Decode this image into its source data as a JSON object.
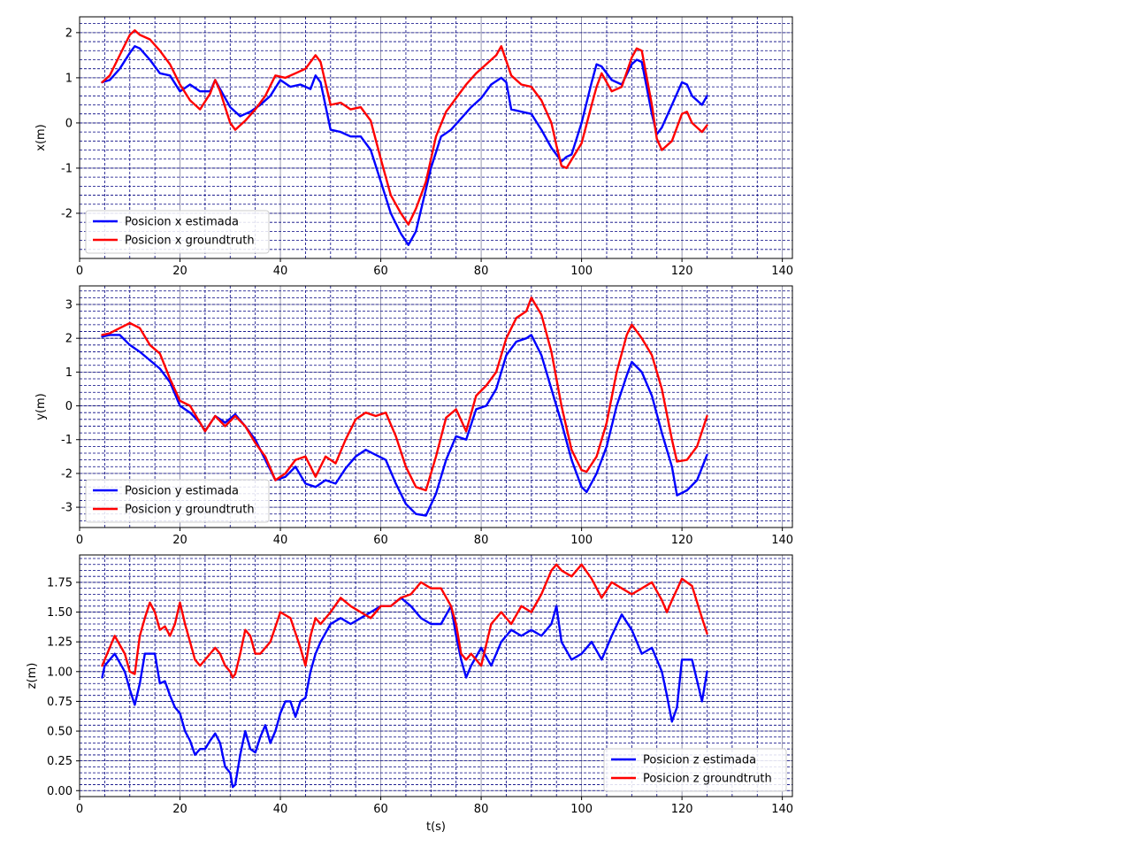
{
  "chart_data": [
    {
      "type": "line",
      "xlabel": "",
      "ylabel": "x(m)",
      "xlim": [
        0,
        142
      ],
      "ylim": [
        -3.0,
        2.35
      ],
      "xticks": [
        0,
        20,
        40,
        60,
        80,
        100,
        120,
        140
      ],
      "yticks": [
        -2,
        -1,
        0,
        1,
        2
      ],
      "grid": true,
      "legend_position": "lower-left",
      "series": [
        {
          "name": "Posicion x estimada",
          "color": "#0000ff",
          "x": [
            4.5,
            6,
            8,
            10,
            11,
            12,
            14,
            16,
            18,
            20,
            22,
            24,
            26,
            27,
            28,
            30,
            32,
            34,
            36,
            38,
            40,
            42,
            44,
            46,
            47,
            48,
            50,
            52,
            54,
            56,
            58,
            60,
            62,
            64,
            65.5,
            67,
            70,
            72,
            74,
            76,
            78,
            80,
            82,
            84,
            85,
            86,
            88,
            90,
            92,
            94,
            96,
            97,
            98,
            100,
            102,
            103,
            104,
            106,
            108,
            110,
            111,
            112,
            114,
            115,
            116,
            118,
            120,
            121,
            122,
            124,
            125
          ],
          "y": [
            0.9,
            0.95,
            1.2,
            1.55,
            1.7,
            1.65,
            1.4,
            1.1,
            1.05,
            0.7,
            0.85,
            0.7,
            0.7,
            0.95,
            0.75,
            0.35,
            0.15,
            0.25,
            0.4,
            0.6,
            0.95,
            0.8,
            0.85,
            0.75,
            1.05,
            0.9,
            -0.15,
            -0.2,
            -0.3,
            -0.3,
            -0.6,
            -1.3,
            -2.0,
            -2.45,
            -2.7,
            -2.4,
            -1.0,
            -0.3,
            -0.15,
            0.1,
            0.35,
            0.55,
            0.85,
            1.0,
            0.9,
            0.3,
            0.25,
            0.2,
            -0.15,
            -0.55,
            -0.85,
            -0.75,
            -0.7,
            0.0,
            0.9,
            1.3,
            1.25,
            0.95,
            0.85,
            1.3,
            1.4,
            1.35,
            0.2,
            -0.25,
            -0.1,
            0.4,
            0.9,
            0.85,
            0.6,
            0.4,
            0.6
          ]
        },
        {
          "name": "Posicion x groundtruth",
          "color": "#ff0000",
          "x": [
            4.5,
            6,
            8,
            10,
            11,
            12,
            14,
            16,
            18,
            20,
            22,
            24,
            26,
            27,
            28,
            30,
            31,
            33,
            35,
            37,
            39,
            41,
            43,
            45,
            47,
            48,
            50,
            52,
            54,
            56,
            58,
            60,
            62,
            64,
            65.5,
            67,
            69,
            71,
            73,
            75,
            77,
            79,
            81,
            83,
            84,
            86,
            88,
            90,
            92,
            94,
            95,
            96,
            97,
            100,
            102,
            103,
            104,
            106,
            108,
            110,
            111,
            112,
            114,
            115,
            116,
            118,
            120,
            121,
            122,
            124,
            125
          ],
          "y": [
            0.9,
            1.05,
            1.5,
            1.95,
            2.05,
            1.95,
            1.85,
            1.6,
            1.3,
            0.85,
            0.5,
            0.3,
            0.65,
            0.95,
            0.7,
            0.0,
            -0.15,
            0.05,
            0.3,
            0.6,
            1.05,
            1.0,
            1.1,
            1.2,
            1.5,
            1.35,
            0.4,
            0.45,
            0.3,
            0.35,
            0.05,
            -0.8,
            -1.6,
            -2.0,
            -2.25,
            -1.9,
            -1.3,
            -0.3,
            0.25,
            0.55,
            0.85,
            1.1,
            1.3,
            1.5,
            1.7,
            1.05,
            0.85,
            0.8,
            0.5,
            0.0,
            -0.5,
            -0.95,
            -1.0,
            -0.45,
            0.4,
            0.8,
            1.1,
            0.7,
            0.8,
            1.45,
            1.65,
            1.6,
            0.4,
            -0.35,
            -0.6,
            -0.4,
            0.2,
            0.25,
            0.0,
            -0.2,
            -0.05
          ]
        }
      ]
    },
    {
      "type": "line",
      "xlabel": "",
      "ylabel": "y(m)",
      "xlim": [
        0,
        142
      ],
      "ylim": [
        -3.6,
        3.55
      ],
      "xticks": [
        0,
        20,
        40,
        60,
        80,
        100,
        120,
        140
      ],
      "yticks": [
        -3,
        -2,
        -1,
        0,
        1,
        2,
        3
      ],
      "grid": true,
      "legend_position": "lower-left",
      "series": [
        {
          "name": "Posicion y estimada",
          "color": "#0000ff",
          "x": [
            4.5,
            6,
            8,
            10,
            12,
            14,
            16,
            18,
            20,
            22,
            24,
            25,
            27,
            29,
            31,
            33,
            35,
            37,
            39,
            41,
            43,
            45,
            47,
            49,
            51,
            53,
            55,
            57,
            59,
            61,
            63,
            65,
            67,
            69,
            71,
            73,
            75,
            77,
            79,
            81,
            83,
            85,
            87,
            89,
            90,
            92,
            94,
            96,
            98,
            100,
            101,
            103,
            105,
            107,
            109,
            110,
            112,
            114,
            116,
            118,
            119,
            121,
            123,
            125
          ],
          "y": [
            2.05,
            2.1,
            2.1,
            1.8,
            1.6,
            1.35,
            1.1,
            0.7,
            0.0,
            -0.2,
            -0.5,
            -0.75,
            -0.3,
            -0.5,
            -0.25,
            -0.6,
            -1.0,
            -1.6,
            -2.2,
            -2.1,
            -1.8,
            -2.3,
            -2.4,
            -2.2,
            -2.3,
            -1.85,
            -1.5,
            -1.3,
            -1.45,
            -1.6,
            -2.3,
            -2.9,
            -3.2,
            -3.25,
            -2.6,
            -1.6,
            -0.9,
            -1.0,
            -0.1,
            0.0,
            0.5,
            1.5,
            1.9,
            2.0,
            2.1,
            1.5,
            0.5,
            -0.5,
            -1.6,
            -2.4,
            -2.55,
            -2.0,
            -1.2,
            0.0,
            0.9,
            1.3,
            1.0,
            0.3,
            -0.8,
            -1.8,
            -2.65,
            -2.5,
            -2.2,
            -1.45
          ]
        },
        {
          "name": "Posicion y groundtruth",
          "color": "#ff0000",
          "x": [
            4.5,
            6,
            8,
            10,
            12,
            14,
            16,
            18,
            20,
            22,
            24,
            25,
            27,
            29,
            31,
            33,
            35,
            37,
            39,
            41,
            43,
            45,
            47,
            49,
            51,
            53,
            55,
            57,
            59,
            61,
            63,
            65,
            67,
            69,
            71,
            73,
            75,
            77,
            79,
            81,
            83,
            85,
            87,
            89,
            90,
            92,
            94,
            96,
            98,
            100,
            101,
            103,
            105,
            107,
            109,
            110,
            112,
            114,
            116,
            118,
            119,
            121,
            123,
            125
          ],
          "y": [
            2.1,
            2.15,
            2.3,
            2.45,
            2.3,
            1.8,
            1.55,
            0.8,
            0.15,
            0.0,
            -0.5,
            -0.75,
            -0.3,
            -0.6,
            -0.3,
            -0.6,
            -1.1,
            -1.5,
            -2.2,
            -2.0,
            -1.6,
            -1.5,
            -2.1,
            -1.5,
            -1.7,
            -1.0,
            -0.4,
            -0.2,
            -0.3,
            -0.2,
            -0.9,
            -1.8,
            -2.4,
            -2.5,
            -1.5,
            -0.35,
            -0.1,
            -0.75,
            0.3,
            0.6,
            1.0,
            2.0,
            2.6,
            2.8,
            3.2,
            2.7,
            1.6,
            0.0,
            -1.3,
            -1.9,
            -1.95,
            -1.5,
            -0.5,
            1.0,
            2.1,
            2.4,
            2.0,
            1.5,
            0.5,
            -1.0,
            -1.65,
            -1.6,
            -1.2,
            -0.3
          ]
        }
      ]
    },
    {
      "type": "line",
      "xlabel": "t(s)",
      "ylabel": "z(m)",
      "xlim": [
        0,
        142
      ],
      "ylim": [
        -0.05,
        1.98
      ],
      "xticks": [
        0,
        20,
        40,
        60,
        80,
        100,
        120,
        140
      ],
      "yticks": [
        0.0,
        0.25,
        0.5,
        0.75,
        1.0,
        1.25,
        1.5,
        1.75
      ],
      "grid": true,
      "legend_position": "lower-right",
      "series": [
        {
          "name": "Posicion z estimada",
          "color": "#0000ff",
          "x": [
            4.5,
            5,
            7,
            9,
            10,
            11,
            12,
            13,
            15,
            16,
            17,
            18,
            19,
            20,
            21,
            22,
            23,
            24,
            25,
            26,
            27,
            28,
            29,
            30,
            30.5,
            31,
            32,
            33,
            34,
            35,
            36,
            37,
            38,
            39,
            40,
            41,
            42,
            43,
            44,
            45,
            46,
            47,
            48,
            50,
            52,
            54,
            56,
            58,
            60,
            62,
            64,
            66,
            68,
            70,
            72,
            74,
            75,
            76,
            77,
            78,
            80,
            82,
            84,
            86,
            88,
            90,
            92,
            94,
            95,
            96,
            98,
            100,
            102,
            104,
            106,
            108,
            110,
            112,
            114,
            116,
            117,
            118,
            119,
            120,
            122,
            124,
            125
          ],
          "y": [
            0.95,
            1.05,
            1.15,
            1.0,
            0.85,
            0.72,
            0.9,
            1.15,
            1.15,
            0.9,
            0.92,
            0.8,
            0.7,
            0.65,
            0.5,
            0.42,
            0.3,
            0.35,
            0.35,
            0.42,
            0.48,
            0.4,
            0.2,
            0.15,
            0.03,
            0.05,
            0.3,
            0.5,
            0.35,
            0.32,
            0.45,
            0.55,
            0.4,
            0.5,
            0.65,
            0.75,
            0.75,
            0.62,
            0.75,
            0.78,
            1.0,
            1.15,
            1.25,
            1.4,
            1.45,
            1.4,
            1.45,
            1.5,
            1.55,
            1.55,
            1.62,
            1.55,
            1.45,
            1.4,
            1.4,
            1.55,
            1.3,
            1.1,
            0.95,
            1.05,
            1.2,
            1.05,
            1.25,
            1.35,
            1.3,
            1.35,
            1.3,
            1.4,
            1.55,
            1.25,
            1.1,
            1.15,
            1.25,
            1.1,
            1.3,
            1.48,
            1.35,
            1.15,
            1.2,
            1.0,
            0.8,
            0.58,
            0.7,
            1.1,
            1.1,
            0.75,
            1.0
          ]
        },
        {
          "name": "Posicion z groundtruth",
          "color": "#ff0000",
          "x": [
            4.5,
            5,
            7,
            9,
            10,
            11,
            12,
            13,
            14,
            15,
            16,
            17,
            18,
            19,
            20,
            21,
            22,
            23,
            24,
            26,
            27,
            28,
            29,
            30,
            30.5,
            31,
            32,
            33,
            34,
            35,
            36,
            38,
            40,
            42,
            44,
            45,
            46,
            47,
            48,
            50,
            52,
            54,
            56,
            58,
            60,
            62,
            64,
            66,
            68,
            70,
            72,
            74,
            75,
            76,
            77,
            78,
            80,
            82,
            84,
            86,
            88,
            90,
            92,
            94,
            95,
            96,
            98,
            100,
            102,
            104,
            106,
            108,
            110,
            112,
            114,
            116,
            117,
            118,
            120,
            122,
            124,
            125
          ],
          "y": [
            1.05,
            1.1,
            1.3,
            1.15,
            1.0,
            0.98,
            1.3,
            1.45,
            1.58,
            1.5,
            1.35,
            1.38,
            1.3,
            1.4,
            1.58,
            1.4,
            1.25,
            1.1,
            1.05,
            1.15,
            1.2,
            1.15,
            1.05,
            1.0,
            0.95,
            0.98,
            1.15,
            1.35,
            1.3,
            1.15,
            1.15,
            1.25,
            1.5,
            1.45,
            1.2,
            1.05,
            1.3,
            1.45,
            1.4,
            1.5,
            1.62,
            1.55,
            1.5,
            1.45,
            1.55,
            1.55,
            1.62,
            1.65,
            1.75,
            1.7,
            1.7,
            1.55,
            1.4,
            1.15,
            1.1,
            1.15,
            1.05,
            1.4,
            1.5,
            1.4,
            1.55,
            1.5,
            1.65,
            1.85,
            1.9,
            1.85,
            1.8,
            1.9,
            1.78,
            1.62,
            1.75,
            1.7,
            1.65,
            1.7,
            1.75,
            1.6,
            1.5,
            1.6,
            1.78,
            1.72,
            1.45,
            1.32
          ]
        }
      ]
    }
  ]
}
